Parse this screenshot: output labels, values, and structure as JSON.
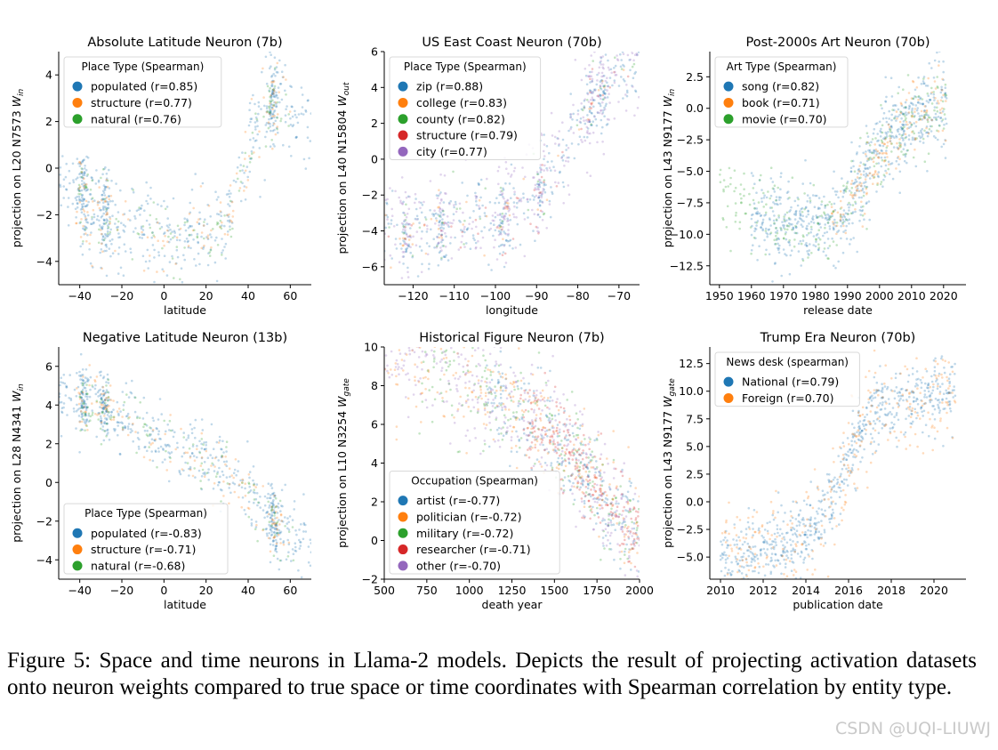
{
  "palette": [
    "#1f77b4",
    "#ff7f0e",
    "#2ca02c",
    "#d62728",
    "#9467bd"
  ],
  "chart_data": [
    {
      "type": "scatter",
      "title": "Absolute Latitude Neuron (7b)",
      "xlabel": "latitude",
      "ylabel": "projection on L20 N7573",
      "ylabel_sym": "W",
      "ylabel_sub": "in",
      "xlim": [
        -50,
        70
      ],
      "ylim": [
        -5,
        5
      ],
      "xticks": [
        -40,
        -20,
        0,
        20,
        40,
        60
      ],
      "yticks": [
        -4,
        -2,
        0,
        2,
        4
      ],
      "xtick_labels": [
        "−40",
        "−20",
        "0",
        "20",
        "40",
        "60"
      ],
      "ytick_labels": [
        "−4",
        "−2",
        "0",
        "2",
        "4"
      ],
      "legend_title": "Place Type (Spearman)",
      "legend_position": "upper-left",
      "legend": [
        "populated  (r=0.85)",
        "structure (r=0.77)",
        "natural  (r=0.76)"
      ],
      "trend": {
        "x": [
          -42,
          -35,
          -28,
          -20,
          -10,
          0,
          10,
          20,
          28,
          35,
          42,
          50,
          55,
          62,
          70
        ],
        "y": [
          -0.8,
          -1.6,
          -2.0,
          -2.3,
          -2.6,
          -2.9,
          -3.0,
          -2.7,
          -2.2,
          -1.0,
          1.4,
          2.6,
          3.3,
          2.2,
          1.6
        ]
      },
      "clusters": [
        -38,
        -28,
        52
      ],
      "series": [
        {
          "name": "populated",
          "weight": 0.7,
          "spread": 0.95
        },
        {
          "name": "structure",
          "weight": 0.16,
          "spread": 0.8,
          "xmin": -42,
          "xmax": 60
        },
        {
          "name": "natural",
          "weight": 0.14,
          "spread": 0.8,
          "xmin": -42,
          "xmax": 60
        }
      ]
    },
    {
      "type": "scatter",
      "title": "US East Coast Neuron (70b)",
      "xlabel": "longitude",
      "ylabel": "projection on L40 N15804",
      "ylabel_sym": "W",
      "ylabel_sub": "out",
      "xlim": [
        -127,
        -65
      ],
      "ylim": [
        -7,
        6
      ],
      "xticks": [
        -120,
        -110,
        -100,
        -90,
        -80,
        -70
      ],
      "yticks": [
        -6,
        -4,
        -2,
        0,
        2,
        4,
        6
      ],
      "xtick_labels": [
        "−120",
        "−110",
        "−100",
        "−90",
        "−80",
        "−70"
      ],
      "ytick_labels": [
        "−6",
        "−4",
        "−2",
        "0",
        "2",
        "4",
        "6"
      ],
      "legend_title": "Place Type (Spearman)",
      "legend_position": "upper-left",
      "legend": [
        "zip (r=0.88)",
        "college (r=0.83)",
        "county (r=0.82)",
        "structure (r=0.79)",
        "city (r=0.77)"
      ],
      "trend": {
        "x": [
          -125,
          -120,
          -115,
          -110,
          -105,
          -100,
          -95,
          -90,
          -85,
          -80,
          -75,
          -70,
          -65
        ],
        "y": [
          -3.8,
          -4.4,
          -3.8,
          -3.6,
          -3.4,
          -3.3,
          -3.1,
          -2.0,
          -0.2,
          1.8,
          3.6,
          5.0,
          5.6
        ]
      },
      "clusters": [
        -122,
        -113,
        -98,
        -89,
        -77,
        -74
      ],
      "series": [
        {
          "name": "zip",
          "weight": 0.44,
          "spread": 1.1
        },
        {
          "name": "college",
          "weight": 0.05,
          "spread": 1.0
        },
        {
          "name": "county",
          "weight": 0.05,
          "spread": 0.9
        },
        {
          "name": "structure",
          "weight": 0.05,
          "spread": 1.0
        },
        {
          "name": "city",
          "weight": 0.41,
          "spread": 1.5
        }
      ]
    },
    {
      "type": "scatter",
      "title": "Post-2000s Art Neuron (70b)",
      "xlabel": "release date",
      "ylabel": "projection on L43 N9177",
      "ylabel_sym": "W",
      "ylabel_sub": "in",
      "xlim": [
        1947,
        2027
      ],
      "ylim": [
        -14,
        4.5
      ],
      "xticks": [
        1950,
        1960,
        1970,
        1980,
        1990,
        2000,
        2010,
        2020
      ],
      "yticks": [
        -12.5,
        -10.0,
        -7.5,
        -5.0,
        -2.5,
        0.0,
        2.5
      ],
      "xtick_labels": [
        "1950",
        "1960",
        "1970",
        "1980",
        "1990",
        "2000",
        "2010",
        "2020"
      ],
      "ytick_labels": [
        "−12.5",
        "−10.0",
        "−7.5",
        "−5.0",
        "−2.5",
        "0.0",
        "2.5"
      ],
      "legend_title": "Art Type (Spearman)",
      "legend_position": "upper-left",
      "legend": [
        "song  (r=0.82)",
        "book  (r=0.71)",
        "movie  (r=0.70)"
      ],
      "trend": {
        "x": [
          1950,
          1960,
          1970,
          1980,
          1985,
          1990,
          1995,
          2000,
          2005,
          2010,
          2015,
          2020
        ],
        "y": [
          -7.5,
          -8.2,
          -9.0,
          -9.3,
          -8.8,
          -7.8,
          -5.8,
          -3.5,
          -2.0,
          -1.0,
          -0.4,
          0.1
        ]
      },
      "clusters": [],
      "series": [
        {
          "name": "song",
          "weight": 0.62,
          "spread": 1.7,
          "xmin": 1960,
          "xmax": 2021
        },
        {
          "name": "book",
          "weight": 0.14,
          "spread": 1.2,
          "xmin": 1985,
          "xmax": 2021
        },
        {
          "name": "movie",
          "weight": 0.24,
          "spread": 1.7,
          "xmin": 1950,
          "xmax": 2021
        }
      ]
    },
    {
      "type": "scatter",
      "title": "Negative Latitude Neuron (13b)",
      "xlabel": "latitude",
      "ylabel": "projection on L28 N4341",
      "ylabel_sym": "W",
      "ylabel_sub": "in",
      "xlim": [
        -50,
        70
      ],
      "ylim": [
        -5,
        7
      ],
      "xticks": [
        -40,
        -20,
        0,
        20,
        40,
        60
      ],
      "yticks": [
        -4,
        -2,
        0,
        2,
        4,
        6
      ],
      "xtick_labels": [
        "−40",
        "−20",
        "0",
        "20",
        "40",
        "60"
      ],
      "ytick_labels": [
        "−4",
        "−2",
        "0",
        "2",
        "4",
        "6"
      ],
      "legend_title": "Place Type (Spearman)",
      "legend_position": "lower-left",
      "legend": [
        "populated  (r=-0.83)",
        "structure (r=-0.71)",
        "natural  (r=-0.68)"
      ],
      "trend": {
        "x": [
          -42,
          -35,
          -28,
          -20,
          -10,
          0,
          10,
          20,
          30,
          40,
          50,
          55,
          62,
          70
        ],
        "y": [
          4.3,
          4.2,
          4.0,
          3.3,
          2.6,
          2.1,
          1.6,
          1.2,
          0.6,
          -0.4,
          -1.6,
          -2.4,
          -2.9,
          -3.2
        ]
      },
      "clusters": [
        -38,
        -28,
        52
      ],
      "series": [
        {
          "name": "populated",
          "weight": 0.7,
          "spread": 0.85
        },
        {
          "name": "structure",
          "weight": 0.16,
          "spread": 0.8,
          "xmin": -40,
          "xmax": 62
        },
        {
          "name": "natural",
          "weight": 0.14,
          "spread": 0.8,
          "xmin": -40,
          "xmax": 62
        }
      ]
    },
    {
      "type": "scatter",
      "title": "Historical Figure Neuron (7b)",
      "xlabel": "death year",
      "ylabel": "projection on L10 N3254",
      "ylabel_sym": "W",
      "ylabel_sub": "gate",
      "xlim": [
        500,
        2000
      ],
      "ylim": [
        -2,
        10
      ],
      "xticks": [
        500,
        750,
        1000,
        1250,
        1500,
        1750,
        2000
      ],
      "yticks": [
        -2,
        0,
        2,
        4,
        6,
        8,
        10
      ],
      "xtick_labels": [
        "500",
        "750",
        "1000",
        "1250",
        "1500",
        "1750",
        "2000"
      ],
      "ytick_labels": [
        "−2",
        "0",
        "2",
        "4",
        "6",
        "8",
        "10"
      ],
      "legend_title": "Occupation (Spearman)",
      "legend_position": "lower-left",
      "legend": [
        "artist  (r=-0.77)",
        "politician  (r=-0.72)",
        "military  (r=-0.72)",
        "researcher  (r=-0.71)",
        "other  (r=-0.70)"
      ],
      "trend": {
        "x": [
          500,
          750,
          1000,
          1250,
          1500,
          1650,
          1800,
          1900,
          2000
        ],
        "y": [
          10.2,
          9.2,
          8.2,
          7.0,
          5.4,
          4.0,
          2.0,
          1.0,
          0.4
        ]
      },
      "clusters": [],
      "series": [
        {
          "name": "artist",
          "weight": 0.2,
          "spread": 1.3,
          "xmin": 1100,
          "xmax": 2000
        },
        {
          "name": "politician",
          "weight": 0.2,
          "spread": 1.4,
          "xmin": 500,
          "xmax": 2000
        },
        {
          "name": "military",
          "weight": 0.16,
          "spread": 1.3,
          "xmin": 700,
          "xmax": 2000
        },
        {
          "name": "researcher",
          "weight": 0.16,
          "spread": 1.1,
          "xmin": 1300,
          "xmax": 2000
        },
        {
          "name": "other",
          "weight": 0.28,
          "spread": 1.5,
          "xmin": 500,
          "xmax": 2000
        }
      ]
    },
    {
      "type": "scatter",
      "title": "Trump Era Neuron (70b)",
      "xlabel": "publication date",
      "ylabel": "projection on L43 N9177",
      "ylabel_sym": "W",
      "ylabel_sub": "gate",
      "xlim": [
        2009.5,
        2021.5
      ],
      "ylim": [
        -7,
        14
      ],
      "xticks": [
        2010,
        2012,
        2014,
        2016,
        2018,
        2020
      ],
      "yticks": [
        -5.0,
        -2.5,
        0.0,
        2.5,
        5.0,
        7.5,
        10.0,
        12.5
      ],
      "xtick_labels": [
        "2010",
        "2012",
        "2014",
        "2016",
        "2018",
        "2020"
      ],
      "ytick_labels": [
        "−5.0",
        "−2.5",
        "0.0",
        "2.5",
        "5.0",
        "7.5",
        "10.0",
        "12.5"
      ],
      "legend_title": "News desk (spearman)",
      "legend_position": "upper-left",
      "legend": [
        "National (r=0.79)",
        "Foreign (r=0.70)"
      ],
      "trend": {
        "x": [
          2010,
          2011,
          2012,
          2013,
          2014,
          2015,
          2015.5,
          2016,
          2016.5,
          2017,
          2018,
          2019,
          2020,
          2021
        ],
        "y": [
          -4.5,
          -4.7,
          -4.6,
          -4.0,
          -3.0,
          -1.0,
          1.0,
          3.5,
          6.0,
          7.8,
          8.8,
          9.4,
          9.8,
          10.0
        ]
      },
      "clusters": [],
      "series": [
        {
          "name": "National",
          "weight": 0.7,
          "spread": 1.6,
          "xmin": 2010,
          "xmax": 2021
        },
        {
          "name": "Foreign",
          "weight": 0.3,
          "spread": 2.6,
          "xmin": 2010,
          "xmax": 2021
        }
      ]
    }
  ],
  "caption": "Figure 5:  Space and time neurons in Llama-2 models.  Depicts the result of projecting activation datasets onto neuron weights compared to true space or time coordinates with Spearman correlation by entity type.",
  "watermark": "CSDN @UQI-LIUWJ"
}
